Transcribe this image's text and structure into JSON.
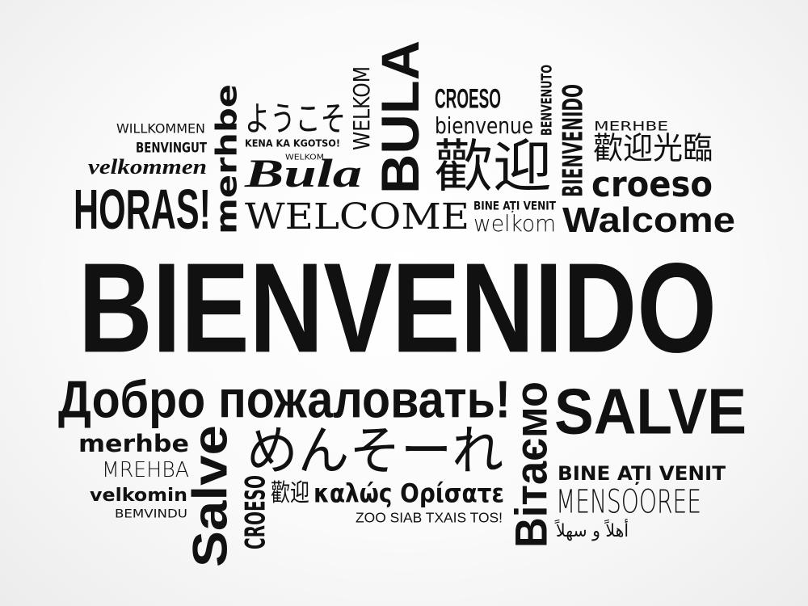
{
  "words": {
    "bienvenido_big": "BIENVENIDO",
    "dobro": "Добро пожаловать!",
    "salve_right": "SALVE",
    "horas": "HORAS!",
    "merhbe_vertical": "merhbe",
    "yokoso": "ようこそ",
    "kena": "KENA KA KGOTSO!",
    "welkom_tiny": "WELKOM",
    "welkom_vertical": "WELKOM",
    "bula_script": "Bula",
    "bula_vertical": "BULA",
    "welcome": "WELCOME",
    "croeso_top": "CROESO",
    "bienvenue": "bienvenue",
    "huanying": "歡迎",
    "benvenuto_vertical": "BENVENUTO",
    "bienvenido_vertical": "BIENVENIDO",
    "merhbe_caps": "MERHBE",
    "huanying_guanglin": "歡迎光臨",
    "croeso_right": "croeso",
    "walcome": "Walcome",
    "bine_small": "BINE AȚI VENIT",
    "welkom_lower": "welkom",
    "willkommen": "WILLKOMMEN",
    "benvingut": "BENVINGUT",
    "velkommen": "velkommen",
    "merhbe_bold": "merhbe",
    "mrehba": "MREHBA",
    "velkomin": "velkomin",
    "bemvindu": "BEMVINDU",
    "salve_vertical": "Salve",
    "croeso_vertical": "CROESO",
    "mensoree": "MENSOOREE",
    "kalos": "καλώς Ορίσατε",
    "zoo": "ZOO SIAB TXAIS TOS!",
    "huanying_small": "歡迎",
    "menso_hira": "めんそーれ",
    "vitaemo_vertical": "Вітаємо",
    "bine_bold": "BINE AȚI VENIT",
    "mensooree": "MENSOOREE",
    "ahlan": "أهلاً و سهلاً"
  }
}
